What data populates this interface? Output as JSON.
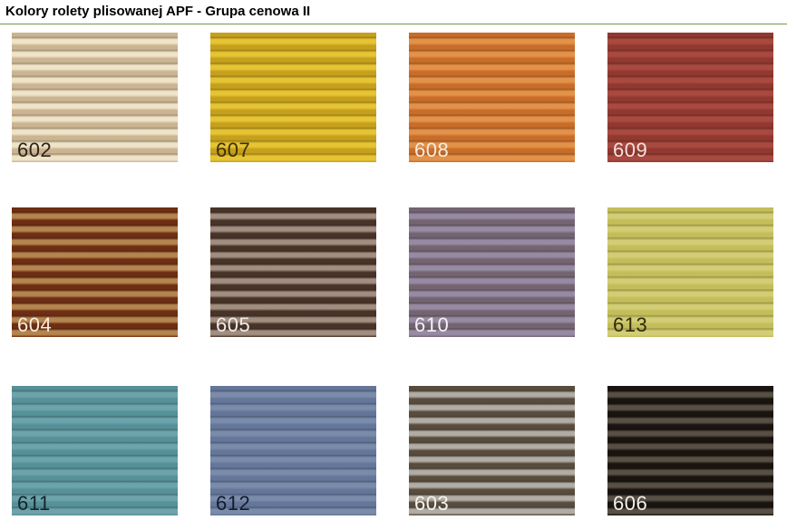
{
  "title": "Kolory rolety plisowanej APF - Grupa cenowa II",
  "divider_color": "#75984e",
  "swatches": [
    {
      "code": "602",
      "light": "#efe3c8",
      "dark": "#cbb491",
      "label_color": "#2b2317"
    },
    {
      "code": "607",
      "light": "#e6c433",
      "dark": "#c5a01d",
      "label_color": "#3d2e05"
    },
    {
      "code": "608",
      "light": "#e3924a",
      "dark": "#c86d29",
      "label_color": "#f5ece1"
    },
    {
      "code": "609",
      "light": "#a84a40",
      "dark": "#913830",
      "label_color": "#f3e1dc"
    },
    {
      "code": "604",
      "light": "#b5854f",
      "dark": "#6d2e13",
      "label_color": "#f6ecdc"
    },
    {
      "code": "605",
      "light": "#a28e81",
      "dark": "#483329",
      "label_color": "#f2ece6"
    },
    {
      "code": "610",
      "light": "#968ba2",
      "dark": "#746471",
      "label_color": "#f4f1f6"
    },
    {
      "code": "613",
      "light": "#d3cd75",
      "dark": "#c3bd5a",
      "label_color": "#2e2a0e"
    },
    {
      "code": "611",
      "light": "#6da4ab",
      "dark": "#569099",
      "label_color": "#14262a"
    },
    {
      "code": "612",
      "light": "#7b8cab",
      "dark": "#647699",
      "label_color": "#131b2e"
    },
    {
      "code": "603",
      "light": "#b1ada5",
      "dark": "#584c3e",
      "label_color": "#f6f4f0"
    },
    {
      "code": "606",
      "light": "#585045",
      "dark": "#191410",
      "label_color": "#f2f0ed"
    }
  ]
}
